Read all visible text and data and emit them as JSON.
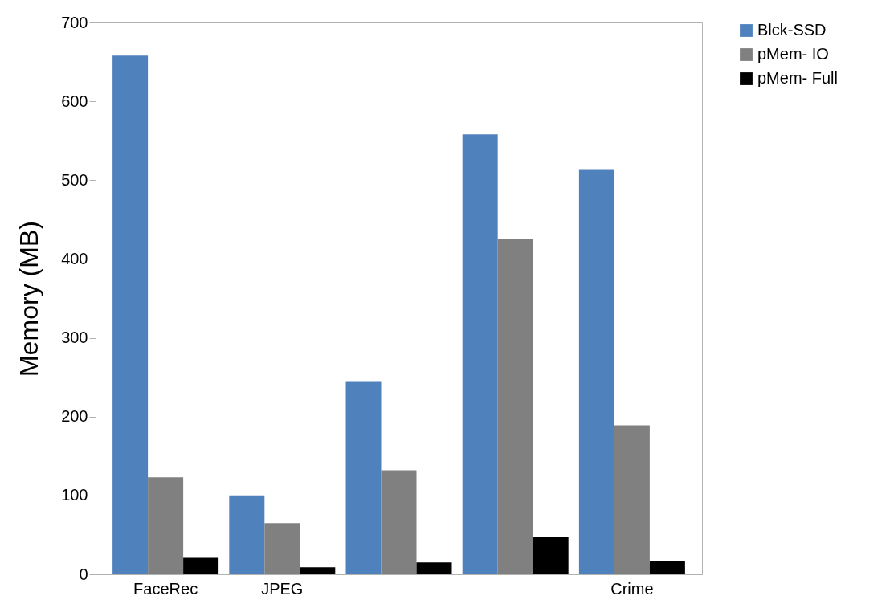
{
  "chart_data": {
    "type": "bar",
    "ylabel": "Memory (MB)",
    "categories": [
      "FaceRec",
      "JPEG",
      null,
      null,
      "Crime"
    ],
    "series": [
      {
        "name": "Blck-SSD",
        "color": "#4f81bd",
        "values": [
          658,
          100,
          245,
          558,
          513
        ]
      },
      {
        "name": "pMem- IO",
        "color": "#808080",
        "values": [
          123,
          65,
          132,
          426,
          189
        ]
      },
      {
        "name": "pMem- Full",
        "color": "#000000",
        "values": [
          21,
          9,
          15,
          48,
          17
        ]
      }
    ],
    "ylim": [
      0,
      700
    ],
    "yticks": [
      0,
      100,
      200,
      300,
      400,
      500,
      600,
      700
    ],
    "grid": false,
    "legend": "right"
  }
}
